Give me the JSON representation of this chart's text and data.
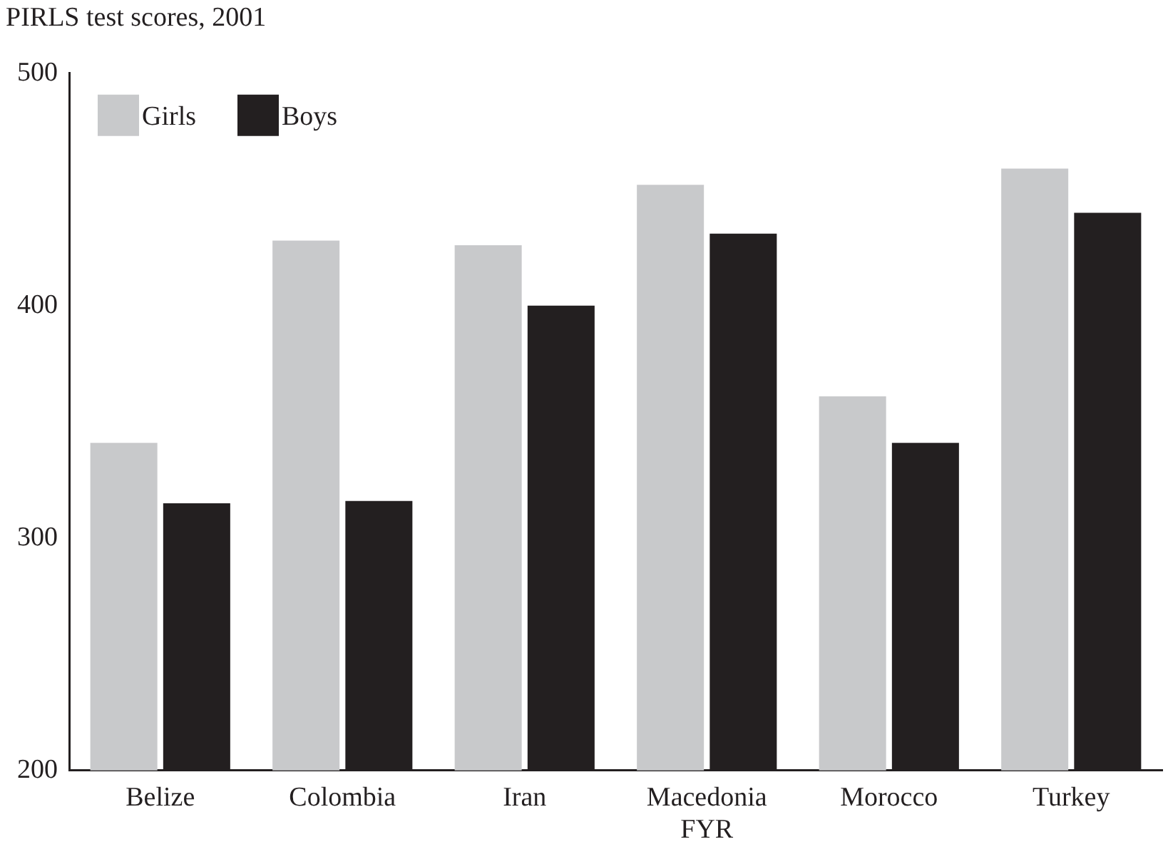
{
  "chart_data": {
    "type": "bar",
    "title": "PIRLS test scores, 2001",
    "categories": [
      "Belize",
      "Colombia",
      "Iran",
      "Macedonia FYR",
      "Morocco",
      "Turkey"
    ],
    "series": [
      {
        "name": "Girls",
        "color": "#c8c9cb",
        "values": [
          341,
          428,
          426,
          452,
          361,
          459
        ]
      },
      {
        "name": "Boys",
        "color": "#231f20",
        "values": [
          315,
          316,
          400,
          431,
          341,
          440
        ]
      }
    ],
    "ylim": [
      200,
      500
    ],
    "yticks": [
      200,
      300,
      400,
      500
    ],
    "grid": false,
    "legend": "top left"
  }
}
